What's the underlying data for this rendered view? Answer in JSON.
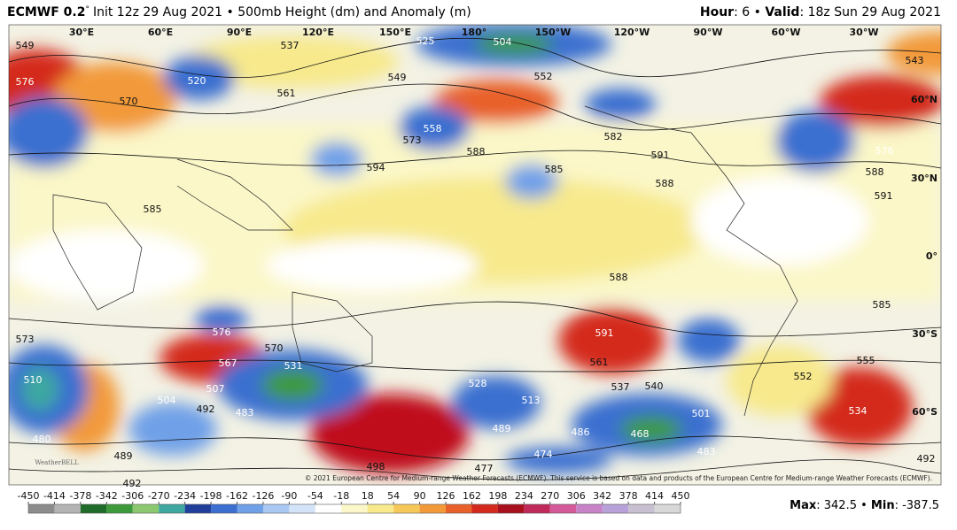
{
  "header": {
    "model": "ECMWF 0.2",
    "degree": "°",
    "description": "Init 12z 29 Aug 2021 • 500mb Height (dm) and Anomaly (m)",
    "hour_label": "Hour",
    "hour_value": ": 6 • ",
    "valid_label": "Valid",
    "valid_value": ": 18z Sun 29 Aug 2021"
  },
  "map": {
    "longitude_labels": [
      "30°E",
      "60°E",
      "90°E",
      "120°E",
      "150°E",
      "180°",
      "150°W",
      "120°W",
      "90°W",
      "60°W",
      "30°W"
    ],
    "latitude_labels": [
      "60°N",
      "30°N",
      "0°",
      "30°S",
      "60°S"
    ],
    "contour_labels": [
      "549",
      "576",
      "570",
      "520",
      "537",
      "561",
      "549",
      "525",
      "504",
      "552",
      "558",
      "573",
      "588",
      "594",
      "585",
      "582",
      "588",
      "591",
      "543",
      "576",
      "588",
      "591",
      "585",
      "588",
      "585",
      "576",
      "567",
      "570",
      "531",
      "573",
      "510",
      "507",
      "504",
      "492",
      "483",
      "480",
      "489",
      "492",
      "498",
      "477",
      "474",
      "486",
      "468",
      "489",
      "528",
      "513",
      "537",
      "540",
      "501",
      "483",
      "534",
      "552",
      "555",
      "591",
      "561",
      "492"
    ],
    "copyright": "© 2021 European Centre for Medium-range Weather Forecasts (ECMWF). This service is based on data and products of the European Centre for Medium-range Weather Forecasts (ECMWF).",
    "watermark": "WeatherBELL"
  },
  "colorbar": {
    "ticks": [
      -450,
      -414,
      -378,
      -342,
      -306,
      -270,
      -234,
      -198,
      -162,
      -126,
      -90,
      -54,
      -18,
      18,
      54,
      90,
      126,
      162,
      198,
      234,
      270,
      306,
      342,
      378,
      414,
      450
    ],
    "colors": [
      "#8c8c8c",
      "#b4b4b4",
      "#1f6b2a",
      "#3d9a3a",
      "#8cc870",
      "#3ea7a0",
      "#1f3f9a",
      "#3b6fd0",
      "#6fa0e8",
      "#a9c8f2",
      "#d4e4f8",
      "#ffffff",
      "#fbf7c8",
      "#f7e98c",
      "#f6c85a",
      "#f29a3a",
      "#e8602a",
      "#d42a1e",
      "#a8101e",
      "#c02a5a",
      "#d45a9a",
      "#c882c8",
      "#b8a0d8",
      "#c8c0d0",
      "#d8d8d8"
    ]
  },
  "stats": {
    "max_label": "Max",
    "max_value": ": 342.5 • ",
    "min_label": "Min",
    "min_value": ": -387.5"
  }
}
